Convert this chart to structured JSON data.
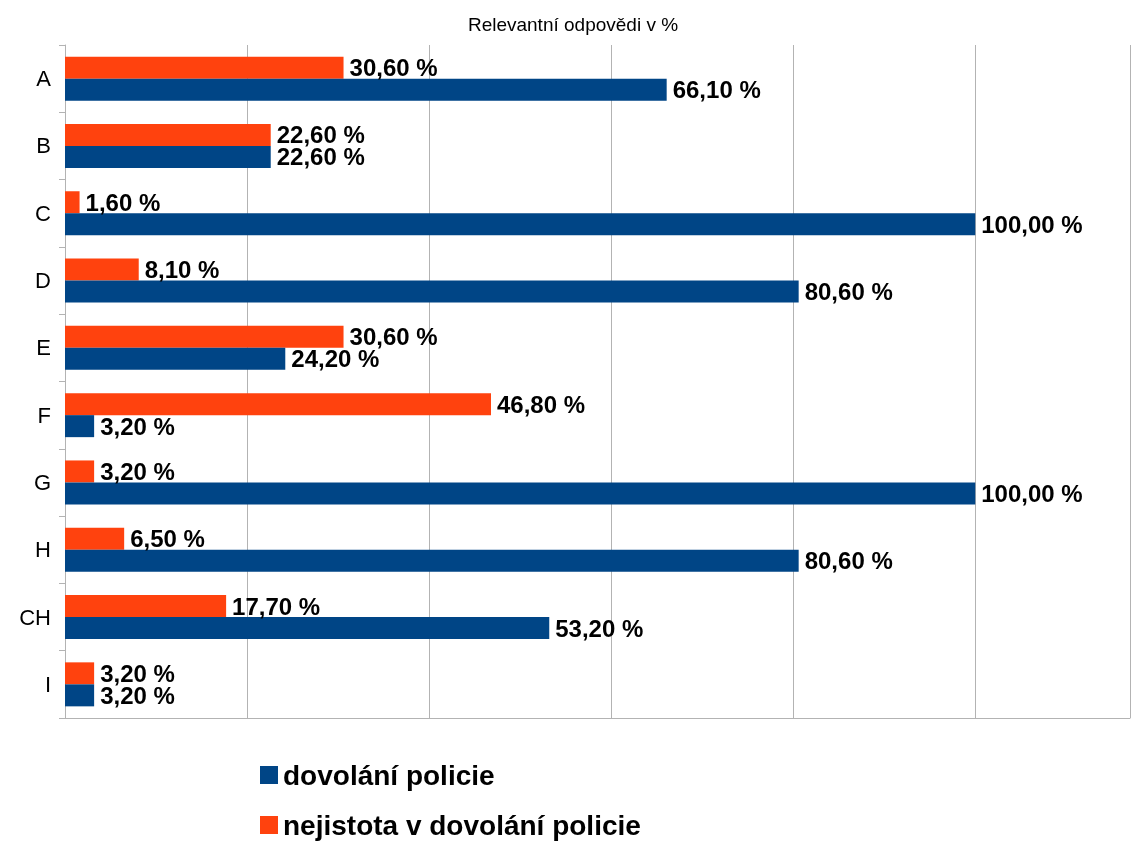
{
  "chart_data": {
    "type": "bar",
    "orientation": "horizontal",
    "title": "Relevantní odpovědi v %",
    "categories": [
      "A",
      "B",
      "C",
      "D",
      "E",
      "F",
      "G",
      "H",
      "CH",
      "I"
    ],
    "series": [
      {
        "name": "dovolání policie",
        "color": "#004586",
        "values": [
          66.1,
          22.6,
          100,
          80.6,
          24.2,
          3.2,
          100,
          80.6,
          53.2,
          3.2
        ],
        "value_labels": [
          "66,10 %",
          "22,60 %",
          "100,00 %",
          "80,60 %",
          "24,20 %",
          "3,20 %",
          "100,00 %",
          "80,60 %",
          "53,20 %",
          "3,20 %"
        ]
      },
      {
        "name": "nejistota v dovolání policie",
        "color": "#ff420e",
        "values": [
          30.6,
          22.6,
          1.6,
          8.1,
          30.6,
          46.8,
          3.2,
          6.5,
          17.7,
          3.2
        ],
        "value_labels": [
          "30,60 %",
          "22,60 %",
          "1,60 %",
          "8,10 %",
          "30,60 %",
          "46,80 %",
          "3,20 %",
          "6,50 %",
          "17,70 %",
          "3,20 %"
        ]
      }
    ],
    "xlim": [
      0,
      117
    ],
    "xticks": [
      {
        "value": 0,
        "label": null
      },
      {
        "value": 20,
        "label": null
      },
      {
        "value": 40,
        "label": null
      },
      {
        "value": 60,
        "label": null
      },
      {
        "value": 80,
        "label": null
      },
      {
        "value": 100,
        "label": null
      }
    ],
    "tick_labels": "y",
    "grid": "x",
    "legend": "bottom"
  }
}
